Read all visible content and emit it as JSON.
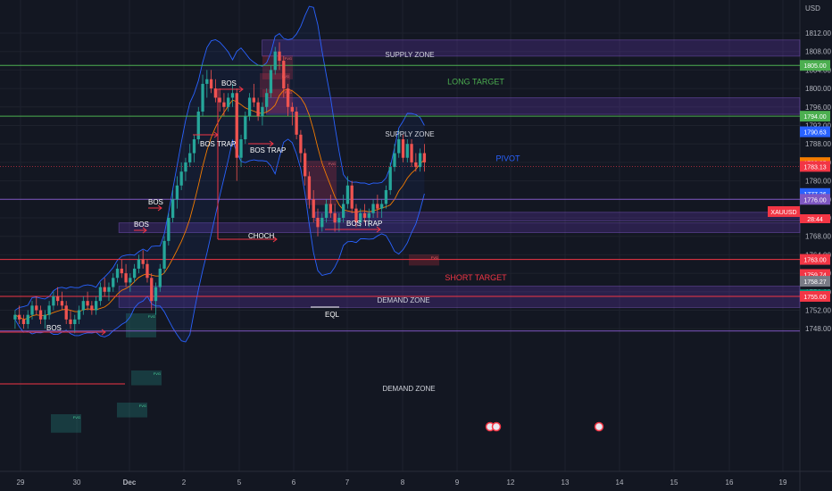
{
  "chart_data": {
    "type": "candlestick",
    "currency": "USD",
    "symbol": "XAUUSD",
    "countdown": "28:44",
    "ylim": [
      1744,
      1815
    ],
    "y_ticks": [
      1748,
      1752,
      1756,
      1760,
      1764,
      1768,
      1772,
      1776,
      1780,
      1784,
      1788,
      1792,
      1796,
      1800,
      1804,
      1808,
      1812
    ],
    "x_ticks": [
      {
        "label": "29",
        "t": -2
      },
      {
        "label": "30",
        "t": -1
      },
      {
        "label": "Dec",
        "t": 0
      },
      {
        "label": "2",
        "t": 1
      },
      {
        "label": "5",
        "t": 2
      },
      {
        "label": "6",
        "t": 3
      },
      {
        "label": "7",
        "t": 4
      },
      {
        "label": "8",
        "t": 5
      },
      {
        "label": "9",
        "t": 6
      },
      {
        "label": "12",
        "t": 7
      },
      {
        "label": "13",
        "t": 8
      },
      {
        "label": "14",
        "t": 9
      },
      {
        "label": "15",
        "t": 10
      },
      {
        "label": "16",
        "t": 11
      },
      {
        "label": "19",
        "t": 12
      }
    ],
    "price_badges": [
      {
        "value": "1805.00",
        "price": 1805.0,
        "color": "#4caf50"
      },
      {
        "value": "1794.00",
        "price": 1794.0,
        "color": "#4caf50"
      },
      {
        "value": "1790.63",
        "price": 1790.63,
        "color": "#2962ff"
      },
      {
        "value": "1783.95",
        "price": 1783.95,
        "color": "#f57c00"
      },
      {
        "value": "1783.13",
        "price": 1783.13,
        "color": "#f23645"
      },
      {
        "value": "1777.26",
        "price": 1777.26,
        "color": "#2962ff"
      },
      {
        "value": "1776.00",
        "price": 1776.0,
        "color": "#7e57c2"
      },
      {
        "value": "1763.00",
        "price": 1763.0,
        "color": "#f23645"
      },
      {
        "value": "1759.74",
        "price": 1759.74,
        "color": "#f23645"
      },
      {
        "value": "1758.27",
        "price": 1758.27,
        "color": "#787b86"
      },
      {
        "value": "1755.32",
        "price": 1755.32,
        "color": "#089981"
      },
      {
        "value": "1755.00",
        "price": 1755.0,
        "color": "#f23645"
      }
    ],
    "lines": [
      {
        "price": 1805,
        "color": "#4caf50"
      },
      {
        "price": 1794,
        "color": "#4caf50"
      },
      {
        "price": 1776,
        "color": "#7e57c2"
      },
      {
        "price": 1763,
        "color": "#f23645"
      },
      {
        "price": 1755,
        "color": "#f23645"
      },
      {
        "price": 1747.5,
        "color": "#7e57c2"
      }
    ],
    "zones": [
      {
        "label": "SUPPLY ZONE",
        "top": 1810.5,
        "bottom": 1807,
        "start": 2.42
      },
      {
        "label": "SUPPLY ZONE",
        "top": 1798,
        "bottom": 1794.4,
        "start": 2.5
      },
      {
        "label": "",
        "top": 1773.2,
        "bottom": 1771.3,
        "start": 3.4
      },
      {
        "label": "DEMAND ZONE",
        "top": 1770.9,
        "bottom": 1768.8,
        "start": -0.2
      },
      {
        "label": "DEMAND ZONE",
        "top": 1757.2,
        "bottom": 1752.6,
        "start": -0.2
      }
    ],
    "texts": [
      {
        "text": "LONG TARGET",
        "t": 6.35,
        "price": 1800.9,
        "color": "#4caf50"
      },
      {
        "text": "PIVOT",
        "t": 6.95,
        "price": 1784.3,
        "color": "#2962ff"
      },
      {
        "text": "SHORT TARGET",
        "t": 6.35,
        "price": 1758.5,
        "color": "#f23645"
      }
    ],
    "annotations": [
      "BOS",
      "BOS",
      "BOS",
      "BOS",
      "BOS TRAP",
      "BOS TRAP",
      "CHOCH",
      "BOS TRAP",
      "EQL"
    ],
    "fvg_label": "FVG",
    "candles": [
      [
        1750,
        1752,
        1748,
        1751
      ],
      [
        1751,
        1753,
        1749,
        1750
      ],
      [
        1750,
        1751,
        1748,
        1749
      ],
      [
        1749,
        1752,
        1748,
        1751
      ],
      [
        1751,
        1754,
        1750,
        1753
      ],
      [
        1753,
        1755,
        1751,
        1752
      ],
      [
        1752,
        1753,
        1749,
        1750
      ],
      [
        1750,
        1752,
        1748,
        1751
      ],
      [
        1751,
        1754,
        1750,
        1753
      ],
      [
        1753,
        1756,
        1752,
        1755
      ],
      [
        1755,
        1757,
        1753,
        1754
      ],
      [
        1754,
        1756,
        1752,
        1753
      ],
      [
        1753,
        1754,
        1749,
        1750
      ],
      [
        1750,
        1752,
        1748,
        1749
      ],
      [
        1749,
        1751,
        1747,
        1750
      ],
      [
        1750,
        1753,
        1749,
        1752
      ],
      [
        1752,
        1755,
        1751,
        1754
      ],
      [
        1754,
        1756,
        1752,
        1753
      ],
      [
        1753,
        1754,
        1751,
        1752
      ],
      [
        1752,
        1755,
        1751,
        1754
      ],
      [
        1754,
        1758,
        1753,
        1757
      ],
      [
        1757,
        1759,
        1755,
        1756
      ],
      [
        1756,
        1758,
        1754,
        1757
      ],
      [
        1757,
        1760,
        1756,
        1759
      ],
      [
        1759,
        1762,
        1758,
        1761
      ],
      [
        1761,
        1763,
        1759,
        1760
      ],
      [
        1760,
        1762,
        1757,
        1758
      ],
      [
        1758,
        1760,
        1756,
        1759
      ],
      [
        1759,
        1762,
        1758,
        1761
      ],
      [
        1761,
        1764,
        1760,
        1763
      ],
      [
        1763,
        1765,
        1761,
        1762
      ],
      [
        1762,
        1763,
        1758,
        1759
      ],
      [
        1759,
        1760,
        1752,
        1754
      ],
      [
        1754,
        1758,
        1751,
        1757
      ],
      [
        1757,
        1762,
        1756,
        1761
      ],
      [
        1761,
        1768,
        1760,
        1767
      ],
      [
        1767,
        1773,
        1766,
        1772
      ],
      [
        1772,
        1778,
        1771,
        1776
      ],
      [
        1776,
        1781,
        1774,
        1779
      ],
      [
        1779,
        1784,
        1778,
        1782
      ],
      [
        1782,
        1785,
        1780,
        1784
      ],
      [
        1784,
        1788,
        1783,
        1786
      ],
      [
        1786,
        1790,
        1784,
        1789
      ],
      [
        1789,
        1796,
        1788,
        1795
      ],
      [
        1795,
        1803,
        1794,
        1801
      ],
      [
        1801,
        1804,
        1798,
        1802
      ],
      [
        1802,
        1804,
        1799,
        1800
      ],
      [
        1800,
        1802,
        1797,
        1798
      ],
      [
        1798,
        1800,
        1795,
        1797
      ],
      [
        1797,
        1799,
        1794,
        1796
      ],
      [
        1796,
        1799,
        1795,
        1798
      ],
      [
        1798,
        1801,
        1796,
        1799
      ],
      [
        1799,
        1800,
        1780,
        1785
      ],
      [
        1785,
        1790,
        1783,
        1789
      ],
      [
        1789,
        1795,
        1788,
        1794
      ],
      [
        1794,
        1799,
        1793,
        1798
      ],
      [
        1798,
        1801,
        1796,
        1797
      ],
      [
        1797,
        1798,
        1793,
        1794
      ],
      [
        1794,
        1797,
        1792,
        1796
      ],
      [
        1796,
        1800,
        1795,
        1799
      ],
      [
        1799,
        1805,
        1798,
        1804
      ],
      [
        1804,
        1809,
        1803,
        1808
      ],
      [
        1808,
        1810,
        1804,
        1806
      ],
      [
        1806,
        1807,
        1798,
        1800
      ],
      [
        1800,
        1801,
        1794,
        1796
      ],
      [
        1796,
        1797,
        1792,
        1795
      ],
      [
        1795,
        1796,
        1789,
        1790
      ],
      [
        1790,
        1791,
        1784,
        1786
      ],
      [
        1786,
        1787,
        1779,
        1781
      ],
      [
        1781,
        1782,
        1774,
        1776
      ],
      [
        1776,
        1778,
        1771,
        1772
      ],
      [
        1772,
        1774,
        1768,
        1770
      ],
      [
        1770,
        1773,
        1769,
        1772
      ],
      [
        1772,
        1776,
        1771,
        1775
      ],
      [
        1775,
        1777,
        1772,
        1773
      ],
      [
        1773,
        1775,
        1769,
        1771
      ],
      [
        1771,
        1773,
        1769,
        1772
      ],
      [
        1772,
        1777,
        1771,
        1775
      ],
      [
        1775,
        1781,
        1774,
        1779
      ],
      [
        1779,
        1780,
        1773,
        1774
      ],
      [
        1774,
        1775,
        1770,
        1771
      ],
      [
        1771,
        1774,
        1770,
        1773
      ],
      [
        1773,
        1775,
        1771,
        1772
      ],
      [
        1772,
        1774,
        1770,
        1773
      ],
      [
        1773,
        1776,
        1772,
        1775
      ],
      [
        1775,
        1777,
        1772,
        1774
      ],
      [
        1774,
        1776,
        1772,
        1775
      ],
      [
        1775,
        1779,
        1774,
        1778
      ],
      [
        1778,
        1784,
        1777,
        1783
      ],
      [
        1783,
        1788,
        1782,
        1786
      ],
      [
        1786,
        1791,
        1785,
        1789
      ],
      [
        1789,
        1790,
        1784,
        1785
      ],
      [
        1785,
        1789,
        1784,
        1788
      ],
      [
        1788,
        1789,
        1783,
        1784
      ],
      [
        1784,
        1786,
        1782,
        1783
      ],
      [
        1783,
        1787,
        1782,
        1786
      ],
      [
        1786,
        1788,
        1782,
        1784
      ]
    ]
  }
}
